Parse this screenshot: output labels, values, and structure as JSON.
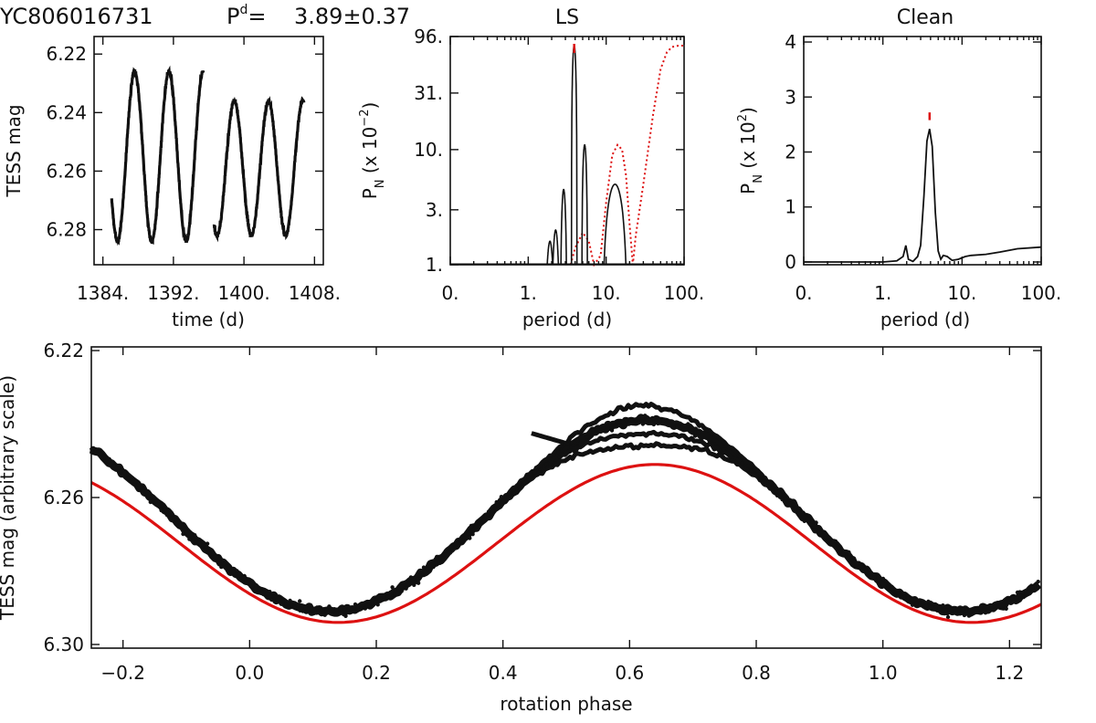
{
  "figure": {
    "star_id": "YC806016731",
    "period_symbol": "P",
    "period_superscript": "d",
    "period_equals": "=",
    "period_value": "3.89±0.37",
    "colors": {
      "data": "#111111",
      "fit": "#dd1111",
      "window": "#dd1111",
      "peak_marker": "#dd1111"
    }
  },
  "chart_data": [
    {
      "id": "lightcurve",
      "type": "scatter",
      "title": "",
      "xlabel": "time (d)",
      "ylabel": "TESS mag",
      "xlim": [
        1383,
        1409
      ],
      "ylim": [
        6.292,
        6.214
      ],
      "y_inverted": true,
      "xticks": [
        1384,
        1392,
        1400,
        1408
      ],
      "xtick_labels": [
        "1384.",
        "1392.",
        "1400.",
        "1408."
      ],
      "yticks": [
        6.22,
        6.24,
        6.26,
        6.28
      ],
      "ytick_labels": [
        "6.22",
        "6.24",
        "6.26",
        "6.28"
      ],
      "series": [
        {
          "name": "TESS photometry",
          "segments": [
            {
              "t_start": 1385.0,
              "t_end": 1395.4,
              "mean": 6.255,
              "amplitude": 0.029,
              "period": 3.89,
              "peak_time": 1387.6
            },
            {
              "t_start": 1396.6,
              "t_end": 1406.8,
              "mean": 6.259,
              "amplitude": 0.023,
              "period": 3.89,
              "peak_time": 1398.9
            }
          ]
        }
      ]
    },
    {
      "id": "ls",
      "type": "line",
      "title": "LS",
      "xlabel": "period (d)",
      "ylabel_main": "P",
      "ylabel_sub": "N",
      "ylabel_rest": " (x 10",
      "ylabel_exp": "−2",
      "ylabel_close": ")",
      "x_scale": "log",
      "xlim": [
        0.1,
        100
      ],
      "y_scale": "log",
      "ylim": [
        1,
        96
      ],
      "xticks": [
        0.1,
        1,
        10,
        100
      ],
      "xtick_labels": [
        "0.",
        "1.",
        "10.",
        "100."
      ],
      "yticks": [
        1,
        3,
        10,
        31,
        96
      ],
      "ytick_labels": [
        "1.",
        "3.",
        "10.",
        "31.",
        "96."
      ],
      "peak_marker_period": 3.89,
      "series": [
        {
          "name": "periodogram",
          "peaks": [
            {
              "period": 1.9,
              "height": 1.6
            },
            {
              "period": 2.25,
              "height": 2.0
            },
            {
              "period": 2.85,
              "height": 4.5
            },
            {
              "period": 3.89,
              "height": 80
            },
            {
              "period": 5.3,
              "height": 11
            },
            {
              "period": 13.0,
              "height": 5
            }
          ]
        },
        {
          "name": "window function",
          "style": "dotted",
          "points": [
            [
              3.5,
              1.0
            ],
            [
              4.0,
              1.4
            ],
            [
              5.0,
              1.9
            ],
            [
              6.0,
              1.6
            ],
            [
              7.0,
              1.0
            ],
            [
              8.5,
              1.2
            ],
            [
              10,
              3.5
            ],
            [
              12,
              9.0
            ],
            [
              14,
              11
            ],
            [
              16,
              10
            ],
            [
              18,
              6
            ],
            [
              20,
              2.2
            ],
            [
              22,
              1.0
            ],
            [
              24,
              1.8
            ],
            [
              30,
              5
            ],
            [
              40,
              20
            ],
            [
              50,
              50
            ],
            [
              60,
              70
            ],
            [
              70,
              78
            ],
            [
              85,
              80
            ],
            [
              100,
              80
            ]
          ]
        }
      ]
    },
    {
      "id": "clean",
      "type": "line",
      "title": "Clean",
      "xlabel": "period (d)",
      "ylabel_main": "P",
      "ylabel_sub": "N",
      "ylabel_rest": " (x 10",
      "ylabel_exp": "2",
      "ylabel_close": ")",
      "x_scale": "log",
      "xlim": [
        0.1,
        100
      ],
      "ylim": [
        -0.05,
        4.1
      ],
      "xticks": [
        0.1,
        1,
        10,
        100
      ],
      "xtick_labels": [
        "0.",
        "1.",
        "10.",
        "100."
      ],
      "yticks": [
        0,
        1,
        2,
        3,
        4
      ],
      "ytick_labels": [
        "0",
        "1",
        "2",
        "3",
        "4"
      ],
      "peak_marker_period": 3.89,
      "series": [
        {
          "name": "clean spectrum",
          "points": [
            [
              0.1,
              0
            ],
            [
              1.0,
              0
            ],
            [
              1.5,
              0.02
            ],
            [
              1.8,
              0.1
            ],
            [
              1.95,
              0.3
            ],
            [
              2.1,
              0.05
            ],
            [
              2.4,
              0.01
            ],
            [
              2.75,
              0.1
            ],
            [
              3.0,
              0.3
            ],
            [
              3.3,
              1.2
            ],
            [
              3.6,
              2.2
            ],
            [
              3.89,
              2.42
            ],
            [
              4.2,
              2.1
            ],
            [
              4.6,
              0.9
            ],
            [
              5.0,
              0.2
            ],
            [
              5.4,
              0.05
            ],
            [
              5.8,
              0.12
            ],
            [
              6.5,
              0.1
            ],
            [
              7.5,
              0.03
            ],
            [
              9,
              0.05
            ],
            [
              11,
              0.1
            ],
            [
              13,
              0.12
            ],
            [
              20,
              0.14
            ],
            [
              30,
              0.18
            ],
            [
              50,
              0.24
            ],
            [
              100,
              0.27
            ]
          ]
        }
      ]
    },
    {
      "id": "phase",
      "type": "scatter",
      "title": "",
      "xlabel": "rotation phase",
      "ylabel": "TESS mag (arbitrary scale)",
      "xlim": [
        -0.25,
        1.25
      ],
      "ylim": [
        6.301,
        6.219
      ],
      "y_inverted": true,
      "xticks": [
        -0.2,
        0.0,
        0.2,
        0.4,
        0.6,
        0.8,
        1.0,
        1.2
      ],
      "xtick_labels": [
        "−0.2",
        "0.0",
        "0.2",
        "0.4",
        "0.6",
        "0.8",
        "1.0",
        "1.2"
      ],
      "yticks": [
        6.22,
        6.26,
        6.3
      ],
      "ytick_labels": [
        "6.22",
        "6.26",
        "6.30"
      ],
      "series": [
        {
          "name": "phased photometry",
          "mean": 6.265,
          "amplitude": 0.026,
          "peak_phase": 0.625,
          "minimum_phase": 0.14
        },
        {
          "name": "sinusoidal fit",
          "mean": 6.2725,
          "amplitude": 0.0215,
          "peak_phase": 0.64
        }
      ]
    }
  ]
}
